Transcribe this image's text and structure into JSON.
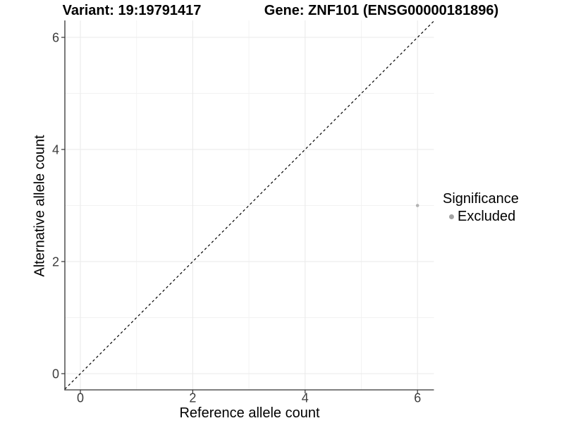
{
  "chart_data": {
    "type": "scatter",
    "title_left": "Variant: 19:19791417",
    "title_right": "Gene: ZNF101 (ENSG00000181896)",
    "xlabel": "Reference allele count",
    "ylabel": "Alternative allele count",
    "xlim": [
      -0.3,
      6.3
    ],
    "ylim": [
      -0.3,
      6.3
    ],
    "x_ticks": [
      0,
      2,
      4,
      6
    ],
    "y_ticks": [
      0,
      2,
      4,
      6
    ],
    "x_minor_ticks": [
      1,
      3,
      5
    ],
    "y_minor_ticks": [
      1,
      3,
      5
    ],
    "grid": true,
    "points": [
      {
        "x": 6,
        "y": 3,
        "significance": "Excluded"
      }
    ],
    "identity_line": {
      "slope": 1,
      "intercept": 0,
      "style": "dashed"
    },
    "legend": {
      "title": "Significance",
      "position": "right",
      "entries": [
        {
          "label": "Excluded",
          "color": "#a3a3a3"
        }
      ]
    }
  },
  "colors": {
    "background": "#ffffff",
    "grid_major": "#eaeaea",
    "grid_minor": "#f2f2f2",
    "axis_line": "#333333",
    "tick_label": "#3d3d3d",
    "text": "#000000",
    "identity_line": "#000000",
    "point": "#b3b3b3"
  }
}
